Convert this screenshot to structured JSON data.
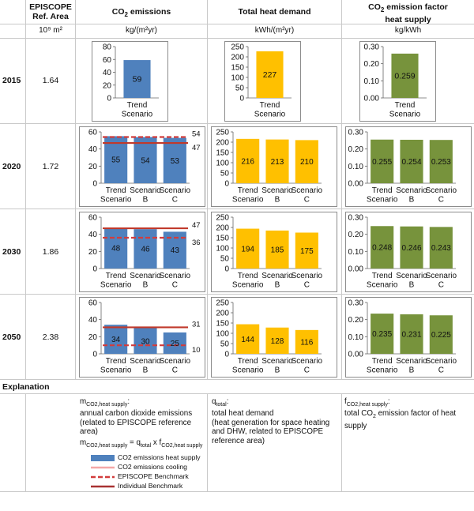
{
  "header": {
    "episcope_line1": "EPISCOPE",
    "episcope_line2": "Ref. Area",
    "co2_pre": "CO",
    "co2_sub": "2",
    "co2_post": " emissions",
    "heat": "Total heat demand",
    "factor_line1_pre": "CO",
    "factor_line1_sub": "2",
    "factor_line1_post": " emission factor",
    "factor_line2": "heat supply"
  },
  "units": {
    "area": "10⁹ m²",
    "co2": "kg/(m²yr)",
    "heat": "kWh/(m²yr)",
    "factor": "kg/kWh"
  },
  "rows": [
    {
      "year": "2015",
      "area": "1.64"
    },
    {
      "year": "2020",
      "area": "1.72"
    },
    {
      "year": "2030",
      "area": "1.86"
    },
    {
      "year": "2050",
      "area": "2.38"
    }
  ],
  "chart_data": [
    {
      "id": "co2_2015",
      "type": "bar",
      "color": "#4f81bd",
      "ylim": [
        0,
        80
      ],
      "ticks": [
        "0",
        "20",
        "40",
        "60",
        "80"
      ],
      "categories": [
        [
          "Trend",
          "Scenario"
        ]
      ],
      "values": [
        59
      ],
      "labels": [
        "59"
      ]
    },
    {
      "id": "heat_2015",
      "type": "bar",
      "color": "#ffc000",
      "ylim": [
        0,
        250
      ],
      "ticks": [
        "0",
        "50",
        "100",
        "150",
        "200",
        "250"
      ],
      "categories": [
        [
          "Trend",
          "Scenario"
        ]
      ],
      "values": [
        227
      ],
      "labels": [
        "227"
      ]
    },
    {
      "id": "factor_2015",
      "type": "bar",
      "color": "#77933c",
      "ylim": [
        0,
        0.3
      ],
      "ticks": [
        "0.00",
        "0.10",
        "0.20",
        "0.30"
      ],
      "categories": [
        [
          "Trend",
          "Scenario"
        ]
      ],
      "values": [
        0.259
      ],
      "labels": [
        "0.259"
      ]
    },
    {
      "id": "co2_2020",
      "type": "bar",
      "color": "#4f81bd",
      "ylim": [
        0,
        60
      ],
      "ticks": [
        "0",
        "20",
        "40",
        "60"
      ],
      "categories": [
        [
          "Trend",
          "Scenario"
        ],
        [
          "Scenario",
          "B"
        ],
        [
          "Scenario",
          "C"
        ]
      ],
      "values": [
        55,
        54,
        53
      ],
      "labels": [
        "55",
        "54",
        "53"
      ],
      "benchmark_episcope": 54,
      "benchmark_individual": 47,
      "benchmark_episcope_label": "54",
      "benchmark_individual_label": "47"
    },
    {
      "id": "heat_2020",
      "type": "bar",
      "color": "#ffc000",
      "ylim": [
        0,
        250
      ],
      "ticks": [
        "0",
        "50",
        "100",
        "150",
        "200",
        "250"
      ],
      "categories": [
        [
          "Trend",
          "Scenario"
        ],
        [
          "Scenario",
          "B"
        ],
        [
          "Scenario",
          "C"
        ]
      ],
      "values": [
        216,
        213,
        210
      ],
      "labels": [
        "216",
        "213",
        "210"
      ]
    },
    {
      "id": "factor_2020",
      "type": "bar",
      "color": "#77933c",
      "ylim": [
        0,
        0.3
      ],
      "ticks": [
        "0.00",
        "0.10",
        "0.20",
        "0.30"
      ],
      "categories": [
        [
          "Trend",
          "Scenario"
        ],
        [
          "Scenario",
          "B"
        ],
        [
          "Scenario",
          "C"
        ]
      ],
      "values": [
        0.255,
        0.254,
        0.253
      ],
      "labels": [
        "0.255",
        "0.254",
        "0.253"
      ]
    },
    {
      "id": "co2_2030",
      "type": "bar",
      "color": "#4f81bd",
      "ylim": [
        0,
        60
      ],
      "ticks": [
        "0",
        "20",
        "40",
        "60"
      ],
      "categories": [
        [
          "Trend",
          "Scenario"
        ],
        [
          "Scenario",
          "B"
        ],
        [
          "Scenario",
          "C"
        ]
      ],
      "values": [
        48,
        46,
        43
      ],
      "labels": [
        "48",
        "46",
        "43"
      ],
      "benchmark_episcope": 36,
      "benchmark_individual": 47,
      "benchmark_episcope_label": "36",
      "benchmark_individual_label": "47"
    },
    {
      "id": "heat_2030",
      "type": "bar",
      "color": "#ffc000",
      "ylim": [
        0,
        250
      ],
      "ticks": [
        "0",
        "50",
        "100",
        "150",
        "200",
        "250"
      ],
      "categories": [
        [
          "Trend",
          "Scenario"
        ],
        [
          "Scenario",
          "B"
        ],
        [
          "Scenario",
          "C"
        ]
      ],
      "values": [
        194,
        185,
        175
      ],
      "labels": [
        "194",
        "185",
        "175"
      ]
    },
    {
      "id": "factor_2030",
      "type": "bar",
      "color": "#77933c",
      "ylim": [
        0,
        0.3
      ],
      "ticks": [
        "0.00",
        "0.10",
        "0.20",
        "0.30"
      ],
      "categories": [
        [
          "Trend",
          "Scenario"
        ],
        [
          "Scenario",
          "B"
        ],
        [
          "Scenario",
          "C"
        ]
      ],
      "values": [
        0.248,
        0.246,
        0.243
      ],
      "labels": [
        "0.248",
        "0.246",
        "0.243"
      ]
    },
    {
      "id": "co2_2050",
      "type": "bar",
      "color": "#4f81bd",
      "ylim": [
        0,
        60
      ],
      "ticks": [
        "0",
        "20",
        "40",
        "60"
      ],
      "categories": [
        [
          "Trend",
          "Scenario"
        ],
        [
          "Scenario",
          "B"
        ],
        [
          "Scenario",
          "C"
        ]
      ],
      "values": [
        34,
        30,
        25
      ],
      "labels": [
        "34",
        "30",
        "25"
      ],
      "benchmark_episcope": 10,
      "benchmark_individual": 31,
      "benchmark_episcope_label": "10",
      "benchmark_individual_label": "31"
    },
    {
      "id": "heat_2050",
      "type": "bar",
      "color": "#ffc000",
      "ylim": [
        0,
        250
      ],
      "ticks": [
        "0",
        "50",
        "100",
        "150",
        "200",
        "250"
      ],
      "categories": [
        [
          "Trend",
          "Scenario"
        ],
        [
          "Scenario",
          "B"
        ],
        [
          "Scenario",
          "C"
        ]
      ],
      "values": [
        144,
        128,
        116
      ],
      "labels": [
        "144",
        "128",
        "116"
      ]
    },
    {
      "id": "factor_2050",
      "type": "bar",
      "color": "#77933c",
      "ylim": [
        0,
        0.3
      ],
      "ticks": [
        "0.00",
        "0.10",
        "0.20",
        "0.30"
      ],
      "categories": [
        [
          "Trend",
          "Scenario"
        ],
        [
          "Scenario",
          "B"
        ],
        [
          "Scenario",
          "C"
        ]
      ],
      "values": [
        0.235,
        0.231,
        0.225
      ],
      "labels": [
        "0.235",
        "0.231",
        "0.225"
      ]
    }
  ],
  "explanation": {
    "title": "Explanation",
    "co2": {
      "symbol": "m",
      "symbol_sub": "CO2,heat supply",
      "colon": ":",
      "text1": "annual carbon dioxide emissions",
      "text2": "(related to EPISCOPE reference",
      "text3": "area)",
      "formula_lhs": "m",
      "formula_lhs_sub": "CO2,heat supply",
      "formula_eq": " = q",
      "formula_q_sub": "total",
      "formula_x": " x f",
      "formula_f_sub": "CO2,heat supply"
    },
    "heat": {
      "symbol": "q",
      "symbol_sub": "total",
      "colon": ":",
      "text1": "total heat demand",
      "text2": "(heat generation for space heating",
      "text3": "and DHW, related to EPISCOPE",
      "text4": "reference area)"
    },
    "factor": {
      "symbol": "f",
      "symbol_sub": "CO2,heat supply",
      "colon": ":",
      "text1_pre": "total CO",
      "text1_sub": "2",
      "text1_post": " emission factor of heat",
      "text2": "supply"
    }
  },
  "legend": [
    {
      "label": "CO2 emissions heat supply",
      "style": "bar",
      "color": "#4f81bd"
    },
    {
      "label": "CO2 emissions cooling",
      "style": "line",
      "color": "#f4a7a7"
    },
    {
      "label": "EPISCOPE Benchmark",
      "style": "dashed",
      "color": "#d23c3c"
    },
    {
      "label": "Individual Benchmark",
      "style": "line",
      "color": "#a83232"
    }
  ]
}
